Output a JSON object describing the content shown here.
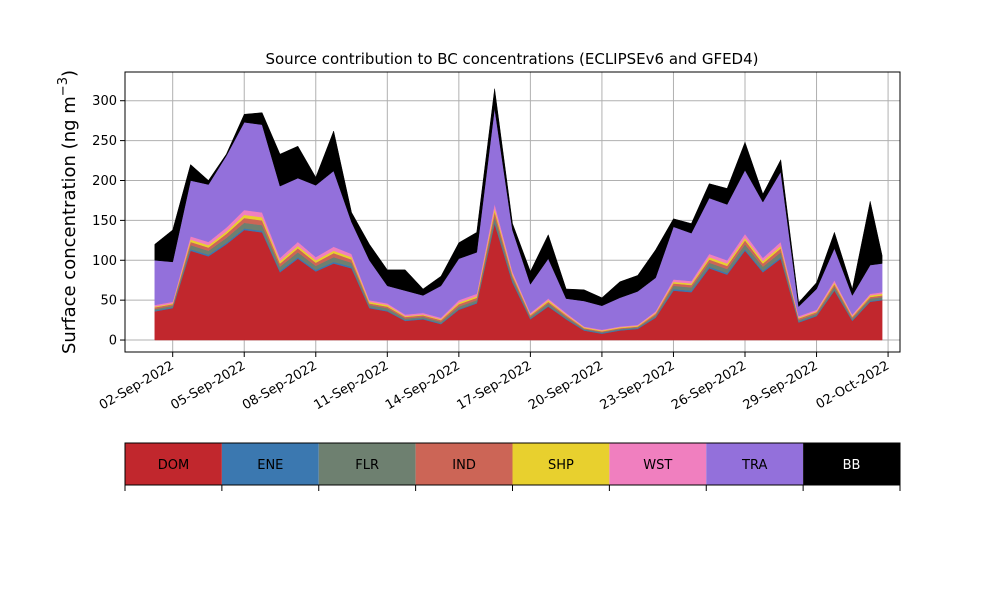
{
  "chart_data": {
    "type": "area",
    "title": "Source contribution to BC concentrations (ECLIPSEv6 and GFED4)",
    "xlabel": "",
    "ylabel_base": "Surface concentration (ng m",
    "ylabel_exp": "−3",
    "ylabel_close": ")",
    "ylim": [
      -15,
      336
    ],
    "yticks": [
      0,
      50,
      100,
      150,
      200,
      250,
      300
    ],
    "xlim": [
      "2022-08-31T00:00",
      "2022-10-02T12:00"
    ],
    "xticks": [
      "02-Sep-2022",
      "05-Sep-2022",
      "08-Sep-2022",
      "11-Sep-2022",
      "14-Sep-2022",
      "17-Sep-2022",
      "20-Sep-2022",
      "23-Sep-2022",
      "26-Sep-2022",
      "29-Sep-2022",
      "02-Oct-2022"
    ],
    "grid": true,
    "x": [
      "2022-09-01T06:00",
      "2022-09-02T00:00",
      "2022-09-02T18:00",
      "2022-09-03T12:00",
      "2022-09-04T06:00",
      "2022-09-05T00:00",
      "2022-09-05T18:00",
      "2022-09-06T12:00",
      "2022-09-07T06:00",
      "2022-09-08T00:00",
      "2022-09-08T18:00",
      "2022-09-09T12:00",
      "2022-09-10T06:00",
      "2022-09-11T00:00",
      "2022-09-11T18:00",
      "2022-09-12T12:00",
      "2022-09-13T06:00",
      "2022-09-14T00:00",
      "2022-09-14T18:00",
      "2022-09-15T12:00",
      "2022-09-16T06:00",
      "2022-09-17T00:00",
      "2022-09-17T18:00",
      "2022-09-18T12:00",
      "2022-09-19T06:00",
      "2022-09-20T00:00",
      "2022-09-20T18:00",
      "2022-09-21T12:00",
      "2022-09-22T06:00",
      "2022-09-23T00:00",
      "2022-09-23T18:00",
      "2022-09-24T12:00",
      "2022-09-25T06:00",
      "2022-09-26T00:00",
      "2022-09-26T18:00",
      "2022-09-27T12:00",
      "2022-09-28T06:00",
      "2022-09-29T00:00",
      "2022-09-29T18:00",
      "2022-09-30T12:00",
      "2022-10-01T06:00",
      "2022-10-01T18:00"
    ],
    "series": [
      {
        "name": "DOM",
        "color": "#c1272d",
        "values": [
          36,
          40,
          112,
          105,
          120,
          138,
          135,
          85,
          102,
          86,
          96,
          90,
          40,
          36,
          24,
          26,
          20,
          38,
          46,
          146,
          72,
          26,
          42,
          26,
          12,
          8,
          12,
          14,
          28,
          62,
          60,
          90,
          82,
          112,
          85,
          102,
          22,
          30,
          62,
          24,
          48,
          50
        ]
      },
      {
        "name": "ENE",
        "color": "#3b78b0",
        "values": [
          1,
          1,
          2,
          2,
          2,
          2,
          2,
          2,
          2,
          2,
          2,
          2,
          1,
          1,
          1,
          1,
          1,
          1,
          1,
          2,
          2,
          1,
          1,
          1,
          1,
          1,
          1,
          1,
          1,
          2,
          2,
          2,
          2,
          2,
          2,
          2,
          1,
          1,
          1,
          1,
          1,
          1
        ]
      },
      {
        "name": "FLR",
        "color": "#6e8070",
        "values": [
          2,
          2,
          5,
          5,
          6,
          7,
          7,
          5,
          6,
          5,
          6,
          5,
          3,
          3,
          2,
          2,
          2,
          3,
          3,
          7,
          4,
          2,
          3,
          2,
          1,
          1,
          1,
          1,
          2,
          4,
          4,
          5,
          5,
          6,
          5,
          6,
          2,
          2,
          4,
          2,
          3,
          3
        ]
      },
      {
        "name": "IND",
        "color": "#cc6556",
        "values": [
          2,
          2,
          4,
          4,
          5,
          6,
          6,
          4,
          5,
          4,
          5,
          4,
          2,
          2,
          2,
          2,
          2,
          3,
          3,
          6,
          3,
          2,
          2,
          2,
          1,
          1,
          1,
          1,
          2,
          3,
          3,
          4,
          4,
          5,
          4,
          5,
          2,
          2,
          3,
          2,
          2,
          2
        ]
      },
      {
        "name": "SHP",
        "color": "#e8d02e",
        "values": [
          1,
          1,
          3,
          3,
          3,
          4,
          4,
          3,
          3,
          3,
          3,
          3,
          2,
          2,
          1,
          1,
          1,
          2,
          2,
          4,
          2,
          1,
          2,
          1,
          1,
          1,
          1,
          1,
          1,
          2,
          2,
          3,
          3,
          3,
          3,
          3,
          1,
          1,
          2,
          1,
          2,
          2
        ]
      },
      {
        "name": "WST",
        "color": "#f07fbf",
        "values": [
          2,
          2,
          4,
          4,
          5,
          6,
          6,
          4,
          5,
          4,
          5,
          4,
          2,
          2,
          2,
          2,
          2,
          3,
          3,
          6,
          3,
          2,
          2,
          2,
          1,
          1,
          1,
          1,
          2,
          3,
          3,
          4,
          4,
          5,
          4,
          5,
          2,
          2,
          3,
          2,
          2,
          2
        ]
      },
      {
        "name": "TRA",
        "color": "#9370db",
        "values": [
          56,
          50,
          70,
          72,
          90,
          110,
          110,
          90,
          80,
          90,
          95,
          40,
          50,
          22,
          30,
          22,
          40,
          52,
          52,
          120,
          52,
          36,
          50,
          18,
          32,
          30,
          36,
          42,
          42,
          66,
          60,
          70,
          70,
          80,
          70,
          88,
          12,
          26,
          40,
          24,
          36,
          36
        ]
      },
      {
        "name": "BB",
        "color": "#000000",
        "values": [
          20,
          40,
          20,
          5,
          2,
          10,
          15,
          40,
          40,
          10,
          50,
          12,
          20,
          20,
          26,
          8,
          12,
          20,
          25,
          24,
          8,
          16,
          30,
          12,
          14,
          10,
          20,
          20,
          35,
          10,
          12,
          18,
          20,
          35,
          10,
          15,
          5,
          8,
          20,
          8,
          80,
          10
        ]
      }
    ]
  },
  "legend": {
    "items": [
      {
        "label": "DOM",
        "color": "#c1272d",
        "text_color": "#000000"
      },
      {
        "label": "ENE",
        "color": "#3b78b0",
        "text_color": "#000000"
      },
      {
        "label": "FLR",
        "color": "#6e8070",
        "text_color": "#000000"
      },
      {
        "label": "IND",
        "color": "#cc6556",
        "text_color": "#000000"
      },
      {
        "label": "SHP",
        "color": "#e8d02e",
        "text_color": "#000000"
      },
      {
        "label": "WST",
        "color": "#f07fbf",
        "text_color": "#000000"
      },
      {
        "label": "TRA",
        "color": "#9370db",
        "text_color": "#000000"
      },
      {
        "label": "BB",
        "color": "#000000",
        "text_color": "#ffffff"
      }
    ]
  }
}
